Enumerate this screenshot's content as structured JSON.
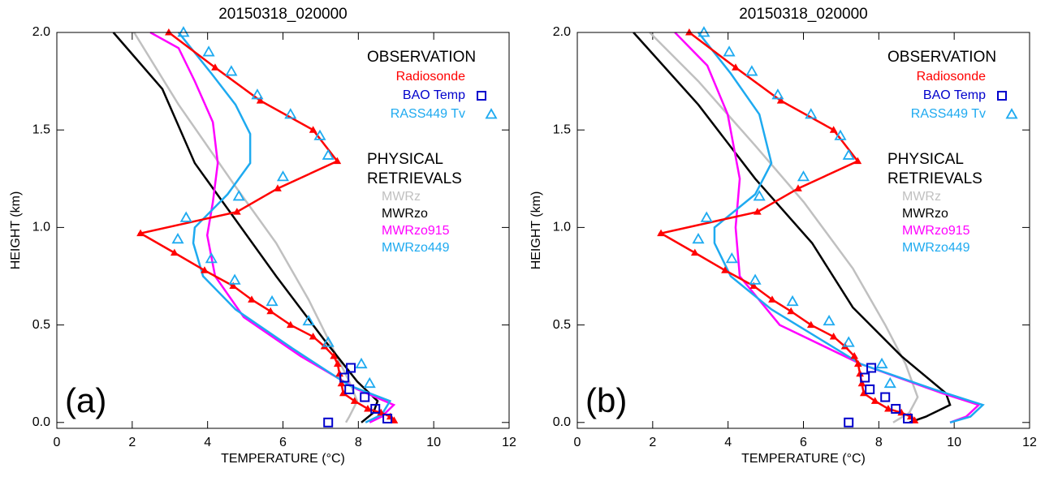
{
  "chart_data": [
    {
      "type": "line",
      "title": "20150318_020000",
      "panel_label": "(a)",
      "xlabel": "TEMPERATURE (°C)",
      "ylabel": "HEIGHT (km)",
      "xlim": [
        0,
        12
      ],
      "ylim": [
        -0.03,
        2.0
      ],
      "xticks": [
        0,
        2,
        4,
        6,
        8,
        10,
        12
      ],
      "yticks": [
        {
          "value": 0,
          "label": "0.0"
        },
        0.5,
        {
          "value": 1,
          "label": "1.0"
        },
        1.5,
        {
          "value": 2,
          "label": "2.0"
        }
      ],
      "groups": [
        {
          "title": "OBSERVATION",
          "series": [
            {
              "name": "Radiosonde",
              "color": "#ff0000",
              "line": true,
              "marker": "triangle-filled",
              "x": [
                2.97,
                4.2,
                5.4,
                6.8,
                7.44,
                5.86,
                4.78,
                2.22,
                3.12,
                3.92,
                4.68,
                5.17,
                5.67,
                6.2,
                6.8,
                7.1,
                7.35,
                7.45,
                7.5,
                7.55,
                7.6,
                7.9,
                8.25,
                8.6,
                8.85,
                8.95
              ],
              "values": [
                2.0,
                1.82,
                1.65,
                1.5,
                1.34,
                1.2,
                1.08,
                0.97,
                0.87,
                0.78,
                0.7,
                0.63,
                0.57,
                0.5,
                0.44,
                0.39,
                0.34,
                0.3,
                0.25,
                0.2,
                0.15,
                0.11,
                0.07,
                0.05,
                0.03,
                0.01
              ]
            },
            {
              "name": "BAO Temp",
              "color": "#0000cc",
              "line": false,
              "marker": "square",
              "x": [
                7.2,
                8.77,
                8.45,
                8.17,
                7.76,
                7.63,
                7.8
              ],
              "values": [
                0.0,
                0.02,
                0.07,
                0.13,
                0.17,
                0.23,
                0.28
              ]
            },
            {
              "name": "RASS449 Tv",
              "color": "#1eaaf0",
              "line": false,
              "marker": "triangle",
              "x": [
                3.36,
                4.03,
                4.63,
                5.32,
                6.2,
                6.98,
                7.2,
                6.0,
                4.83,
                3.43,
                3.21,
                4.1,
                4.72,
                5.71,
                6.68,
                7.2,
                8.08,
                8.3
              ],
              "values": [
                2.0,
                1.9,
                1.8,
                1.68,
                1.58,
                1.47,
                1.37,
                1.26,
                1.16,
                1.05,
                0.94,
                0.84,
                0.73,
                0.62,
                0.52,
                0.41,
                0.3,
                0.2
              ]
            }
          ]
        },
        {
          "title": "PHYSICAL RETRIEVALS",
          "series": [
            {
              "name": "MWRz",
              "color": "#c0c0c0",
              "line": true,
              "marker": null,
              "x": [
                2.05,
                3.23,
                4.74,
                5.82,
                6.68,
                7.22,
                7.76,
                7.97,
                7.76,
                7.67
              ],
              "values": [
                2.0,
                1.63,
                1.21,
                0.92,
                0.63,
                0.42,
                0.21,
                0.11,
                0.03,
                0.0
              ]
            },
            {
              "name": "MWRzo",
              "color": "#000000",
              "line": true,
              "marker": null,
              "x": [
                1.5,
                2.8,
                3.66,
                4.74,
                5.82,
                7.11,
                7.97,
                8.51,
                8.4,
                8.08
              ],
              "values": [
                2.0,
                1.71,
                1.33,
                1.04,
                0.75,
                0.42,
                0.21,
                0.11,
                0.05,
                0.0
              ]
            },
            {
              "name": "MWRzo915",
              "color": "#ff00ff",
              "line": true,
              "marker": null,
              "x": [
                2.48,
                3.23,
                3.66,
                4.14,
                4.27,
                4.14,
                3.99,
                4.2,
                4.96,
                6.47,
                7.97,
                8.94,
                8.62,
                8.3
              ],
              "values": [
                2.0,
                1.92,
                1.75,
                1.54,
                1.33,
                1.13,
                0.96,
                0.75,
                0.54,
                0.34,
                0.17,
                0.09,
                0.03,
                0.0
              ]
            },
            {
              "name": "MWRzo449",
              "color": "#1eaaf0",
              "line": true,
              "marker": null,
              "x": [
                3.23,
                4.1,
                4.74,
                5.13,
                5.13,
                4.53,
                3.66,
                3.62,
                3.88,
                4.74,
                6.25,
                7.76,
                8.84,
                8.62,
                8.19
              ],
              "values": [
                2.0,
                1.79,
                1.63,
                1.48,
                1.33,
                1.17,
                1.0,
                0.92,
                0.75,
                0.58,
                0.38,
                0.19,
                0.11,
                0.04,
                0.0
              ]
            }
          ]
        }
      ]
    },
    {
      "type": "line",
      "title": "20150318_020000",
      "panel_label": "(b)",
      "xlabel": "TEMPERATURE (°C)",
      "ylabel": "HEIGHT (km)",
      "xlim": [
        0,
        12
      ],
      "ylim": [
        -0.03,
        2.0
      ],
      "xticks": [
        0,
        2,
        4,
        6,
        8,
        10,
        12
      ],
      "yticks": [
        {
          "value": 0,
          "label": "0.0"
        },
        0.5,
        {
          "value": 1,
          "label": "1.0"
        },
        1.5,
        {
          "value": 2,
          "label": "2.0"
        }
      ],
      "groups": [
        {
          "title": "OBSERVATION",
          "series": [
            {
              "name": "Radiosonde",
              "color": "#ff0000",
              "line": true,
              "marker": "triangle-filled",
              "x": [
                2.97,
                4.2,
                5.4,
                6.8,
                7.44,
                5.86,
                4.78,
                2.22,
                3.12,
                3.92,
                4.68,
                5.17,
                5.67,
                6.2,
                6.8,
                7.1,
                7.35,
                7.45,
                7.5,
                7.55,
                7.6,
                7.9,
                8.25,
                8.6,
                8.85,
                8.95
              ],
              "values": [
                2.0,
                1.82,
                1.65,
                1.5,
                1.34,
                1.2,
                1.08,
                0.97,
                0.87,
                0.78,
                0.7,
                0.63,
                0.57,
                0.5,
                0.44,
                0.39,
                0.34,
                0.3,
                0.25,
                0.2,
                0.15,
                0.11,
                0.07,
                0.05,
                0.03,
                0.01
              ]
            },
            {
              "name": "BAO Temp",
              "color": "#0000cc",
              "line": false,
              "marker": "square",
              "x": [
                7.2,
                8.77,
                8.45,
                8.17,
                7.76,
                7.63,
                7.8
              ],
              "values": [
                0.0,
                0.02,
                0.07,
                0.13,
                0.17,
                0.23,
                0.28
              ]
            },
            {
              "name": "RASS449 Tv",
              "color": "#1eaaf0",
              "line": false,
              "marker": "triangle",
              "x": [
                3.36,
                4.03,
                4.63,
                5.32,
                6.2,
                6.98,
                7.2,
                6.0,
                4.83,
                3.43,
                3.21,
                4.1,
                4.72,
                5.71,
                6.68,
                7.2,
                8.08,
                8.3
              ],
              "values": [
                2.0,
                1.9,
                1.8,
                1.68,
                1.58,
                1.47,
                1.37,
                1.26,
                1.16,
                1.05,
                0.94,
                0.84,
                0.73,
                0.62,
                0.52,
                0.41,
                0.3,
                0.2
              ]
            }
          ]
        },
        {
          "title": "PHYSICAL RETRIEVALS",
          "series": [
            {
              "name": "MWRz",
              "color": "#c0c0c0",
              "line": true,
              "marker": null,
              "x": [
                1.92,
                3.21,
                4.72,
                6.01,
                7.31,
                8.17,
                8.71,
                9.03,
                8.81,
                8.38
              ],
              "values": [
                2.0,
                1.75,
                1.42,
                1.13,
                0.79,
                0.5,
                0.3,
                0.13,
                0.05,
                0.0
              ]
            },
            {
              "name": "MWRzo",
              "color": "#000000",
              "line": true,
              "marker": null,
              "x": [
                1.49,
                3.21,
                4.72,
                6.23,
                7.31,
                8.6,
                9.78,
                9.89,
                9.25,
                8.81
              ],
              "values": [
                2.0,
                1.63,
                1.25,
                0.92,
                0.59,
                0.34,
                0.15,
                0.09,
                0.03,
                0.0
              ]
            },
            {
              "name": "MWRzo915",
              "color": "#ff00ff",
              "line": true,
              "marker": null,
              "x": [
                2.59,
                3.45,
                3.99,
                4.31,
                4.2,
                4.31,
                5.37,
                7.52,
                9.68,
                10.65,
                10.32,
                9.89
              ],
              "values": [
                2.0,
                1.83,
                1.58,
                1.25,
                1.0,
                0.75,
                0.5,
                0.3,
                0.15,
                0.09,
                0.03,
                0.0
              ]
            },
            {
              "name": "MWRzo449",
              "color": "#1eaaf0",
              "line": true,
              "marker": null,
              "x": [
                3.21,
                4.07,
                4.83,
                5.15,
                4.72,
                3.64,
                3.64,
                4.07,
                5.15,
                7.52,
                9.46,
                10.76,
                10.43,
                9.89
              ],
              "values": [
                2.0,
                1.79,
                1.58,
                1.33,
                1.17,
                1.0,
                0.92,
                0.75,
                0.58,
                0.3,
                0.17,
                0.09,
                0.03,
                0.0
              ]
            }
          ]
        }
      ]
    }
  ]
}
